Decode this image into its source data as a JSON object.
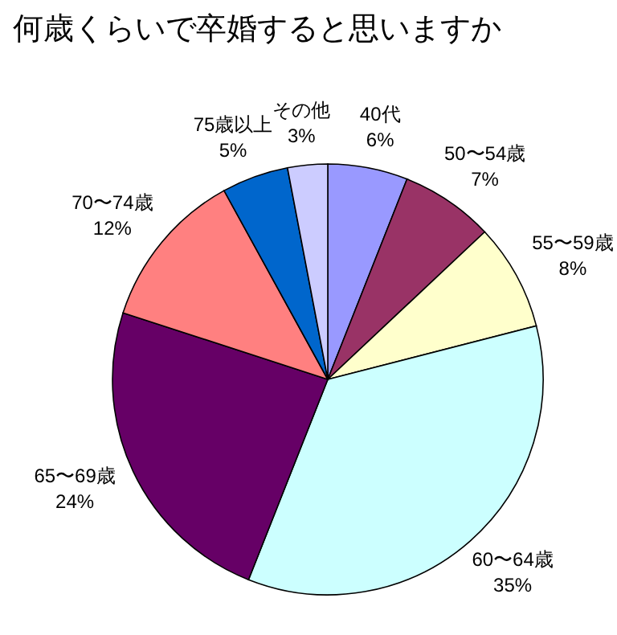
{
  "chart_data": {
    "type": "pie",
    "title": "何歳くらいで卒婚すると思いますか",
    "categories": [
      "40代",
      "50〜54歳",
      "55〜59歳",
      "60〜64歳",
      "65〜69歳",
      "70〜74歳",
      "75歳以上",
      "その他"
    ],
    "values": [
      6,
      7,
      8,
      35,
      24,
      12,
      5,
      3
    ],
    "colors": [
      "#9999ff",
      "#993366",
      "#ffffcc",
      "#ccffff",
      "#660066",
      "#ff8080",
      "#0066cc",
      "#ccccff"
    ],
    "value_labels": [
      "6%",
      "7%",
      "8%",
      "35%",
      "24%",
      "12%",
      "5%",
      "3%"
    ]
  }
}
